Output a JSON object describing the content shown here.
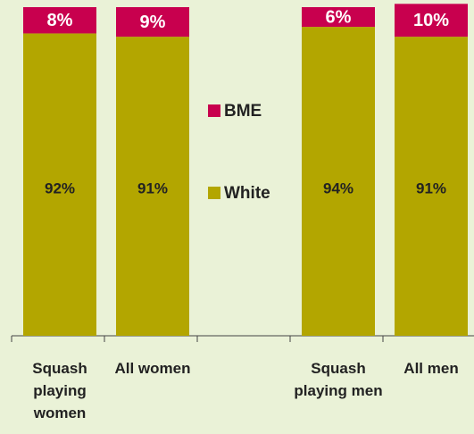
{
  "chart_data": {
    "type": "stacked_bar",
    "categories": [
      "Squash playing women",
      "All women",
      null,
      "Squash playing men",
      "All men"
    ],
    "series": [
      {
        "name": "White",
        "color": "#b3a600",
        "values": [
          92,
          91,
          null,
          94,
          91
        ],
        "value_labels": [
          "92%",
          "91%",
          null,
          "94%",
          "91%"
        ]
      },
      {
        "name": "BME",
        "color": "#c8004e",
        "values": [
          8,
          9,
          null,
          6,
          10
        ],
        "value_labels": [
          "8%",
          "9%",
          null,
          "6%",
          "10%"
        ]
      }
    ],
    "ylim": [
      0,
      100
    ],
    "legend": "center"
  }
}
